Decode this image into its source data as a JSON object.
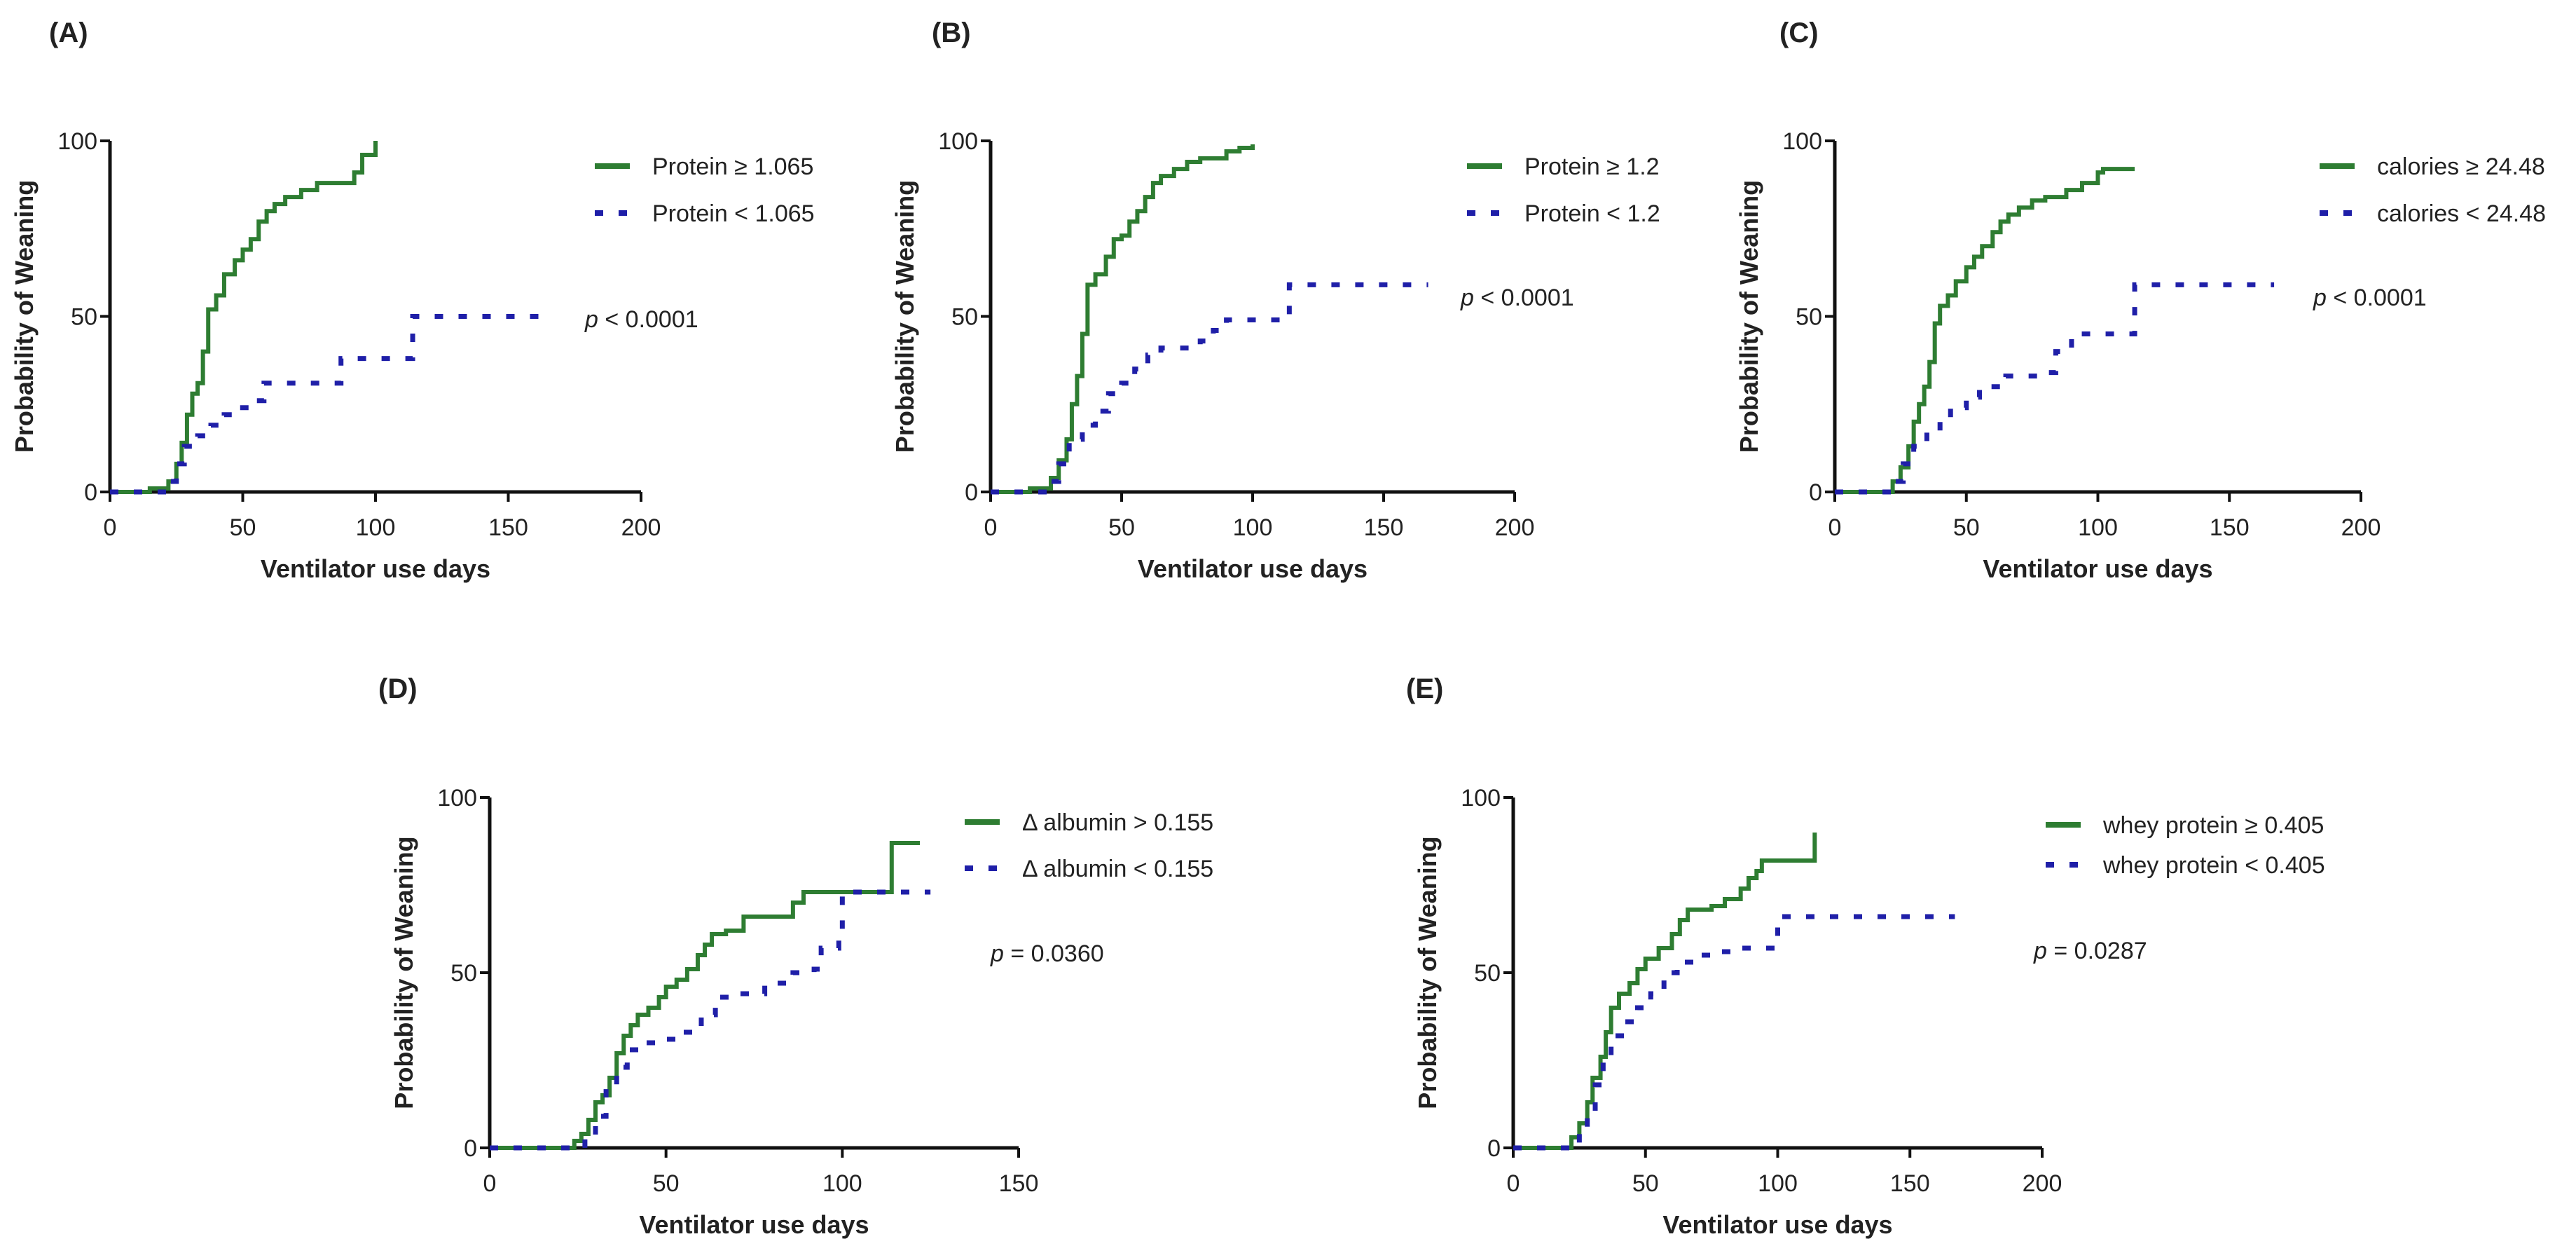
{
  "chart_data": [
    {
      "type": "line",
      "panel_label": "(A)",
      "xlabel": "Ventilator use days",
      "ylabel": "Probability of Weaning",
      "xlim": [
        0,
        200
      ],
      "ylim": [
        0,
        100
      ],
      "xticks": [
        "0",
        "50",
        "100",
        "150",
        "200"
      ],
      "yticks": [
        "0",
        "50",
        "100"
      ],
      "p_value": {
        "prefix": "p",
        "text": " < 0.0001"
      },
      "series": [
        {
          "name": "Protein ≥ 1.065",
          "color": "#2e7d32",
          "style": "solid",
          "points": [
            [
              0,
              0
            ],
            [
              15,
              0
            ],
            [
              15,
              1
            ],
            [
              20,
              1
            ],
            [
              22,
              3
            ],
            [
              25,
              8
            ],
            [
              27,
              14
            ],
            [
              29,
              22
            ],
            [
              31,
              28
            ],
            [
              33,
              31
            ],
            [
              35,
              40
            ],
            [
              37,
              52
            ],
            [
              40,
              56
            ],
            [
              43,
              62
            ],
            [
              47,
              66
            ],
            [
              50,
              69
            ],
            [
              53,
              72
            ],
            [
              56,
              77
            ],
            [
              59,
              80
            ],
            [
              62,
              82
            ],
            [
              66,
              84
            ],
            [
              72,
              86
            ],
            [
              78,
              88
            ],
            [
              88,
              88
            ],
            [
              92,
              91
            ],
            [
              95,
              96
            ],
            [
              100,
              96
            ],
            [
              100,
              100
            ]
          ]
        },
        {
          "name": "Protein < 1.065",
          "color": "#1f1fa8",
          "style": "dashed",
          "points": [
            [
              0,
              0
            ],
            [
              20,
              0
            ],
            [
              22,
              3
            ],
            [
              25,
              8
            ],
            [
              28,
              13
            ],
            [
              33,
              16
            ],
            [
              38,
              19
            ],
            [
              43,
              22
            ],
            [
              48,
              24
            ],
            [
              53,
              26
            ],
            [
              58,
              31
            ],
            [
              85,
              31
            ],
            [
              87,
              38
            ],
            [
              112,
              38
            ],
            [
              114,
              50
            ],
            [
              167,
              50
            ]
          ]
        }
      ]
    },
    {
      "type": "line",
      "panel_label": "(B)",
      "xlabel": "Ventilator use days",
      "ylabel": "Probability of Weaning",
      "xlim": [
        0,
        200
      ],
      "ylim": [
        0,
        100
      ],
      "xticks": [
        "0",
        "50",
        "100",
        "150",
        "200"
      ],
      "yticks": [
        "0",
        "50",
        "100"
      ],
      "p_value": {
        "prefix": "p",
        "text": " < 0.0001"
      },
      "series": [
        {
          "name": "Protein ≥ 1.2",
          "color": "#2e7d32",
          "style": "solid",
          "points": [
            [
              0,
              0
            ],
            [
              15,
              0
            ],
            [
              15,
              1
            ],
            [
              20,
              1
            ],
            [
              23,
              4
            ],
            [
              26,
              9
            ],
            [
              29,
              15
            ],
            [
              31,
              25
            ],
            [
              33,
              33
            ],
            [
              35,
              45
            ],
            [
              37,
              59
            ],
            [
              40,
              62
            ],
            [
              44,
              67
            ],
            [
              47,
              72
            ],
            [
              50,
              73
            ],
            [
              53,
              77
            ],
            [
              56,
              80
            ],
            [
              59,
              84
            ],
            [
              62,
              88
            ],
            [
              65,
              90
            ],
            [
              70,
              92
            ],
            [
              75,
              94
            ],
            [
              80,
              95
            ],
            [
              90,
              97
            ],
            [
              95,
              98
            ],
            [
              100,
              99
            ]
          ]
        },
        {
          "name": "Protein < 1.2",
          "color": "#1f1fa8",
          "style": "dashed",
          "points": [
            [
              0,
              0
            ],
            [
              20,
              0
            ],
            [
              22,
              3
            ],
            [
              26,
              8
            ],
            [
              30,
              15
            ],
            [
              35,
              19
            ],
            [
              40,
              23
            ],
            [
              45,
              28
            ],
            [
              50,
              31
            ],
            [
              55,
              35
            ],
            [
              60,
              39
            ],
            [
              65,
              41
            ],
            [
              75,
              41
            ],
            [
              80,
              43
            ],
            [
              85,
              46
            ],
            [
              90,
              49
            ],
            [
              100,
              49
            ],
            [
              112,
              50
            ],
            [
              114,
              59
            ],
            [
              167,
              59
            ]
          ]
        }
      ]
    },
    {
      "type": "line",
      "panel_label": "(C)",
      "xlabel": "Ventilator use days",
      "ylabel": "Probability of Weaning",
      "xlim": [
        0,
        200
      ],
      "ylim": [
        0,
        100
      ],
      "xticks": [
        "0",
        "50",
        "100",
        "150",
        "200"
      ],
      "yticks": [
        "0",
        "50",
        "100"
      ],
      "p_value": {
        "prefix": "p",
        "text": " < 0.0001"
      },
      "series": [
        {
          "name": "calories ≥ 24.48",
          "color": "#2e7d32",
          "style": "solid",
          "points": [
            [
              0,
              0
            ],
            [
              20,
              0
            ],
            [
              22,
              3
            ],
            [
              25,
              7
            ],
            [
              28,
              13
            ],
            [
              30,
              20
            ],
            [
              32,
              25
            ],
            [
              34,
              30
            ],
            [
              36,
              37
            ],
            [
              38,
              48
            ],
            [
              40,
              53
            ],
            [
              43,
              56
            ],
            [
              46,
              60
            ],
            [
              50,
              64
            ],
            [
              53,
              67
            ],
            [
              56,
              70
            ],
            [
              60,
              74
            ],
            [
              63,
              77
            ],
            [
              66,
              79
            ],
            [
              70,
              81
            ],
            [
              75,
              83
            ],
            [
              80,
              84
            ],
            [
              88,
              86
            ],
            [
              94,
              88
            ],
            [
              100,
              91
            ],
            [
              102,
              92
            ],
            [
              114,
              92
            ]
          ]
        },
        {
          "name": "calories < 24.48",
          "color": "#1f1fa8",
          "style": "dashed",
          "points": [
            [
              0,
              0
            ],
            [
              20,
              0
            ],
            [
              23,
              3
            ],
            [
              26,
              8
            ],
            [
              30,
              13
            ],
            [
              35,
              17
            ],
            [
              40,
              20
            ],
            [
              44,
              24
            ],
            [
              50,
              27
            ],
            [
              55,
              30
            ],
            [
              65,
              33
            ],
            [
              80,
              34
            ],
            [
              84,
              40
            ],
            [
              90,
              45
            ],
            [
              112,
              45
            ],
            [
              114,
              59
            ],
            [
              167,
              59
            ]
          ]
        }
      ]
    },
    {
      "type": "line",
      "panel_label": "(D)",
      "xlabel": "Ventilator use days",
      "ylabel": "Probability of Weaning",
      "xlim": [
        0,
        150
      ],
      "ylim": [
        0,
        100
      ],
      "xticks": [
        "0",
        "50",
        "100",
        "150"
      ],
      "yticks": [
        "0",
        "50",
        "100"
      ],
      "p_value": {
        "prefix": "p",
        "text": " = 0.0360"
      },
      "series": [
        {
          "name": "Δ albumin > 0.155",
          "color": "#2e7d32",
          "style": "solid",
          "points": [
            [
              0,
              0
            ],
            [
              22,
              0
            ],
            [
              24,
              2
            ],
            [
              26,
              4
            ],
            [
              28,
              8
            ],
            [
              30,
              13
            ],
            [
              32,
              15
            ],
            [
              34,
              20
            ],
            [
              36,
              27
            ],
            [
              38,
              32
            ],
            [
              40,
              35
            ],
            [
              42,
              38
            ],
            [
              45,
              40
            ],
            [
              48,
              43
            ],
            [
              50,
              46
            ],
            [
              53,
              48
            ],
            [
              56,
              51
            ],
            [
              59,
              55
            ],
            [
              61,
              58
            ],
            [
              63,
              61
            ],
            [
              67,
              62
            ],
            [
              72,
              66
            ],
            [
              84,
              66
            ],
            [
              86,
              70
            ],
            [
              89,
              73
            ],
            [
              114,
              73
            ],
            [
              114,
              87
            ],
            [
              122,
              87
            ]
          ]
        },
        {
          "name": "Δ albumin < 0.155",
          "color": "#1f1fa8",
          "style": "dashed",
          "points": [
            [
              0,
              0
            ],
            [
              24,
              0
            ],
            [
              27,
              3
            ],
            [
              30,
              9
            ],
            [
              33,
              17
            ],
            [
              36,
              23
            ],
            [
              39,
              28
            ],
            [
              44,
              30
            ],
            [
              50,
              31
            ],
            [
              55,
              33
            ],
            [
              60,
              38
            ],
            [
              64,
              43
            ],
            [
              70,
              44
            ],
            [
              78,
              47
            ],
            [
              86,
              50
            ],
            [
              92,
              51
            ],
            [
              94,
              57
            ],
            [
              99,
              62
            ],
            [
              100,
              73
            ],
            [
              125,
              73
            ]
          ]
        }
      ]
    },
    {
      "type": "line",
      "panel_label": "(E)",
      "xlabel": "Ventilator use days",
      "ylabel": "Probability of Weaning",
      "xlim": [
        0,
        200
      ],
      "ylim": [
        0,
        100
      ],
      "xticks": [
        "0",
        "50",
        "100",
        "150",
        "200"
      ],
      "yticks": [
        "0",
        "50",
        "100"
      ],
      "p_value": {
        "prefix": "p",
        "text": " = 0.0287"
      },
      "series": [
        {
          "name": "whey protein ≥ 0.405",
          "color": "#2e7d32",
          "style": "solid",
          "points": [
            [
              0,
              0
            ],
            [
              20,
              0
            ],
            [
              22,
              3
            ],
            [
              25,
              7
            ],
            [
              28,
              13
            ],
            [
              30,
              20
            ],
            [
              33,
              26
            ],
            [
              35,
              33
            ],
            [
              37,
              40
            ],
            [
              40,
              44
            ],
            [
              44,
              47
            ],
            [
              47,
              51
            ],
            [
              50,
              54
            ],
            [
              55,
              57
            ],
            [
              60,
              61
            ],
            [
              63,
              65
            ],
            [
              66,
              68
            ],
            [
              75,
              69
            ],
            [
              80,
              71
            ],
            [
              86,
              74
            ],
            [
              89,
              77
            ],
            [
              92,
              79
            ],
            [
              94,
              82
            ],
            [
              114,
              82
            ],
            [
              114,
              90
            ]
          ]
        },
        {
          "name": "whey protein < 0.405",
          "color": "#1f1fa8",
          "style": "dashed",
          "points": [
            [
              0,
              0
            ],
            [
              22,
              0
            ],
            [
              25,
              4
            ],
            [
              28,
              10
            ],
            [
              31,
              18
            ],
            [
              34,
              26
            ],
            [
              37,
              32
            ],
            [
              42,
              36
            ],
            [
              47,
              40
            ],
            [
              52,
              44
            ],
            [
              57,
              50
            ],
            [
              62,
              53
            ],
            [
              70,
              55
            ],
            [
              78,
              56
            ],
            [
              85,
              57
            ],
            [
              95,
              57
            ],
            [
              100,
              66
            ],
            [
              167,
              66
            ]
          ]
        }
      ]
    }
  ]
}
